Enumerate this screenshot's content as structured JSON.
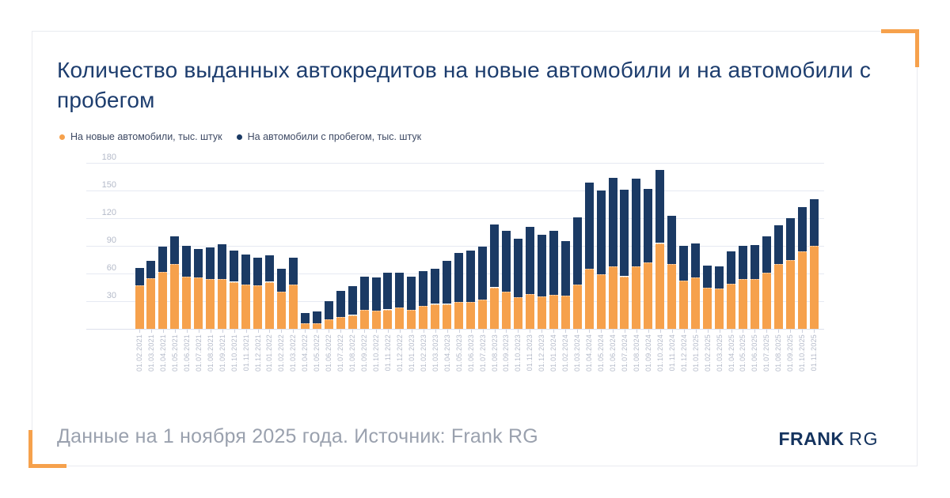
{
  "header": {
    "title": "Количество выданных автокредитов на новые автомобили и на автомобили с пробегом"
  },
  "legend": {
    "items": [
      {
        "label": "На новые автомобили, тыс. штук",
        "color": "#F6A14C"
      },
      {
        "label": "На автомобили с пробегом, тыс. штук",
        "color": "#1B3A64"
      }
    ]
  },
  "chart_data": {
    "type": "bar",
    "stacked": true,
    "title": "Количество выданных автокредитов на новые автомобили и на автомобили с пробегом",
    "xlabel": "",
    "ylabel": "",
    "ylim": [
      0,
      180
    ],
    "yticks": [
      30,
      60,
      90,
      120,
      150,
      180
    ],
    "grid": true,
    "legend_position": "top-left",
    "categories": [
      "01.02.2021",
      "01.03.2021",
      "01.04.2021",
      "01.05.2021",
      "01.06.2021",
      "01.07.2021",
      "01.08.2021",
      "01.09.2021",
      "01.10.2021",
      "01.11.2021",
      "01.12.2021",
      "01.01.2022",
      "01.02.2022",
      "01.03.2022",
      "01.04.2022",
      "01.05.2022",
      "01.06.2022",
      "01.07.2022",
      "01.08.2022",
      "01.09.2022",
      "01.10.2022",
      "01.11.2022",
      "01.12.2022",
      "01.01.2023",
      "01.02.2023",
      "01.03.2023",
      "01.04.2023",
      "01.05.2023",
      "01.06.2023",
      "01.07.2023",
      "01.08.2023",
      "01.09.2023",
      "01.10.2023",
      "01.11.2023",
      "01.12.2023",
      "01.01.2024",
      "01.02.2024",
      "01.03.2024",
      "01.04.2024",
      "01.05.2024",
      "01.06.2024",
      "01.07.2024",
      "01.08.2024",
      "01.09.2024",
      "01.10.2024",
      "01.11.2024",
      "01.12.2024",
      "01.01.2025",
      "01.02.2025",
      "01.03.2025",
      "01.04.2025",
      "01.05.2025",
      "01.06.2025",
      "01.07.2025",
      "01.08.2025",
      "01.09.2025",
      "01.10.2025",
      "01.11.2025"
    ],
    "series": [
      {
        "name": "На новые автомобили, тыс. штук",
        "color": "#F6A14C",
        "values": [
          47,
          55,
          62,
          70,
          57,
          56,
          54,
          54,
          51,
          48,
          47,
          51,
          40,
          48,
          6,
          6,
          10,
          13,
          15,
          21,
          20,
          21,
          23,
          21,
          25,
          27,
          27,
          29,
          29,
          32,
          45,
          40,
          34,
          38,
          35,
          37,
          36,
          48,
          65,
          59,
          68,
          57,
          68,
          72,
          93,
          70,
          52,
          56,
          45,
          44,
          49,
          54,
          54,
          61,
          70,
          75,
          84,
          90
        ]
      },
      {
        "name": "На автомобили с пробегом, тыс. штук",
        "color": "#1B3A64",
        "values": [
          19,
          19,
          27,
          30,
          33,
          31,
          34,
          38,
          34,
          33,
          30,
          29,
          25,
          29,
          11,
          13,
          20,
          28,
          31,
          36,
          36,
          40,
          38,
          36,
          38,
          38,
          47,
          53,
          56,
          57,
          68,
          66,
          64,
          73,
          67,
          69,
          59,
          73,
          94,
          91,
          96,
          94,
          95,
          80,
          79,
          53,
          38,
          37,
          24,
          24,
          35,
          36,
          37,
          39,
          42,
          45,
          48,
          51
        ]
      }
    ]
  },
  "footer": {
    "note": "Данные на 1 ноября 2025 года. Источник: Frank RG",
    "logo_bold": "FRANK",
    "logo_regular": "RG"
  },
  "colors": {
    "accent_orange": "#F6A14C",
    "navy": "#1B3A64",
    "title_text": "#1D3D6E",
    "footer_text": "#9AA1AE",
    "axis_text": "#B4BAC9",
    "gridline": "#E6E9F2",
    "card_border": "#E9EBF0"
  }
}
